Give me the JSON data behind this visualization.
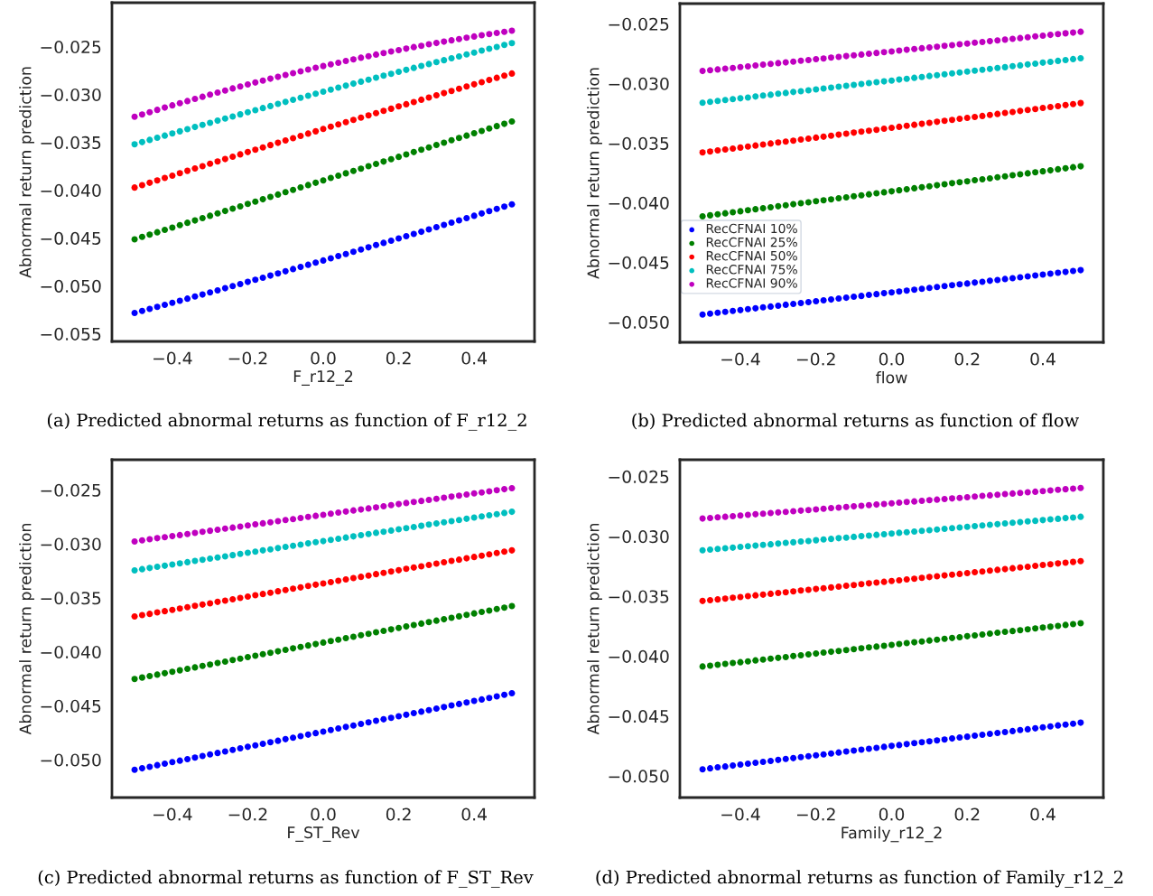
{
  "chart_data": [
    {
      "type": "scatter",
      "xlabel": "F_r12_2",
      "ylabel": "Abnormal return prediction",
      "marker": "circle",
      "xlim": [
        -0.56,
        0.56
      ],
      "ylim": [
        -0.0558,
        -0.0204
      ],
      "xticks": [
        {
          "value": -0.4,
          "label": "−0.4"
        },
        {
          "value": -0.2,
          "label": "−0.2"
        },
        {
          "value": 0.0,
          "label": "0.0"
        },
        {
          "value": 0.2,
          "label": "0.2"
        },
        {
          "value": 0.4,
          "label": "0.4"
        }
      ],
      "yticks": [
        {
          "value": -0.055,
          "label": "−0.055"
        },
        {
          "value": -0.05,
          "label": "−0.050"
        },
        {
          "value": -0.045,
          "label": "−0.045"
        },
        {
          "value": -0.04,
          "label": "−0.040"
        },
        {
          "value": -0.035,
          "label": "−0.035"
        },
        {
          "value": -0.03,
          "label": "−0.030"
        },
        {
          "value": -0.025,
          "label": "−0.025"
        }
      ],
      "annotations": [
        "(a) Predicted abnormal returns as function of F_r12_2"
      ],
      "x": [
        -0.5,
        -0.48,
        -0.46,
        -0.44,
        -0.42,
        -0.4,
        -0.38,
        -0.36,
        -0.34,
        -0.32,
        -0.3,
        -0.28,
        -0.26,
        -0.24,
        -0.22,
        -0.2,
        -0.18,
        -0.16,
        -0.14,
        -0.12,
        -0.1,
        -0.08,
        -0.06,
        -0.04,
        -0.02,
        0.0,
        0.02,
        0.04,
        0.06,
        0.08,
        0.1,
        0.12,
        0.14,
        0.16,
        0.18,
        0.2,
        0.22,
        0.24,
        0.26,
        0.28,
        0.3,
        0.32,
        0.34,
        0.36,
        0.38,
        0.4,
        0.42,
        0.44,
        0.46,
        0.48,
        0.5
      ],
      "series": [
        {
          "color": "#0000ff",
          "values": [
            -0.05283,
            -0.05262,
            -0.0524,
            -0.05219,
            -0.05198,
            -0.05176,
            -0.05155,
            -0.05133,
            -0.05111,
            -0.0509,
            -0.05068,
            -0.05046,
            -0.05024,
            -0.05002,
            -0.0498,
            -0.04958,
            -0.04936,
            -0.04914,
            -0.04892,
            -0.04869,
            -0.04847,
            -0.04824,
            -0.04802,
            -0.04779,
            -0.04757,
            -0.04734,
            -0.04711,
            -0.04688,
            -0.04666,
            -0.04643,
            -0.0462,
            -0.04597,
            -0.04573,
            -0.0455,
            -0.04527,
            -0.04504,
            -0.0448,
            -0.04457,
            -0.04434,
            -0.0441,
            -0.04386,
            -0.04363,
            -0.04339,
            -0.04315,
            -0.04291,
            -0.04267,
            -0.04243,
            -0.04219,
            -0.04195,
            -0.04171,
            -0.04147
          ]
        },
        {
          "color": "#008000",
          "values": [
            -0.04513,
            -0.04488,
            -0.04464,
            -0.04439,
            -0.04414,
            -0.0439,
            -0.04365,
            -0.0434,
            -0.04316,
            -0.04291,
            -0.04267,
            -0.04242,
            -0.04217,
            -0.04193,
            -0.04168,
            -0.04143,
            -0.04119,
            -0.04094,
            -0.0407,
            -0.04045,
            -0.0402,
            -0.03996,
            -0.03971,
            -0.03946,
            -0.03922,
            -0.03897,
            -0.03872,
            -0.03848,
            -0.03823,
            -0.03798,
            -0.03774,
            -0.03749,
            -0.03725,
            -0.037,
            -0.03675,
            -0.03651,
            -0.03626,
            -0.03601,
            -0.03577,
            -0.03552,
            -0.03527,
            -0.03503,
            -0.03478,
            -0.03453,
            -0.03429,
            -0.03404,
            -0.0338,
            -0.03355,
            -0.0333,
            -0.03306,
            -0.03281
          ]
        },
        {
          "color": "#ff0000",
          "values": [
            -0.03972,
            -0.03947,
            -0.03922,
            -0.03897,
            -0.03872,
            -0.03847,
            -0.03822,
            -0.03797,
            -0.03773,
            -0.03748,
            -0.03723,
            -0.03699,
            -0.03674,
            -0.0365,
            -0.03625,
            -0.03601,
            -0.03577,
            -0.03552,
            -0.03528,
            -0.03504,
            -0.0348,
            -0.03456,
            -0.03432,
            -0.03408,
            -0.03384,
            -0.0336,
            -0.03336,
            -0.03312,
            -0.03289,
            -0.03265,
            -0.03241,
            -0.03218,
            -0.03194,
            -0.03171,
            -0.03148,
            -0.03124,
            -0.03101,
            -0.03078,
            -0.03054,
            -0.03031,
            -0.03008,
            -0.02985,
            -0.02962,
            -0.02939,
            -0.02916,
            -0.02893,
            -0.02871,
            -0.02848,
            -0.02825,
            -0.02803,
            -0.0278
          ]
        },
        {
          "color": "#00bfbf",
          "values": [
            -0.0352,
            -0.03497,
            -0.03474,
            -0.03452,
            -0.03429,
            -0.03407,
            -0.03384,
            -0.03362,
            -0.03339,
            -0.03317,
            -0.03295,
            -0.03273,
            -0.03251,
            -0.03229,
            -0.03207,
            -0.03185,
            -0.03163,
            -0.03141,
            -0.0312,
            -0.03098,
            -0.03077,
            -0.03055,
            -0.03034,
            -0.03012,
            -0.02991,
            -0.0297,
            -0.02949,
            -0.02928,
            -0.02907,
            -0.02886,
            -0.02865,
            -0.02844,
            -0.02824,
            -0.02803,
            -0.02783,
            -0.02762,
            -0.02742,
            -0.02721,
            -0.02701,
            -0.02681,
            -0.02661,
            -0.02641,
            -0.02621,
            -0.02601,
            -0.02581,
            -0.02561,
            -0.02541,
            -0.02522,
            -0.02502,
            -0.02482,
            -0.02463
          ]
        },
        {
          "color": "#bf00bf",
          "values": [
            -0.03232,
            -0.03208,
            -0.03184,
            -0.0316,
            -0.03136,
            -0.03113,
            -0.0309,
            -0.03068,
            -0.03045,
            -0.03023,
            -0.03001,
            -0.02979,
            -0.02958,
            -0.02936,
            -0.02916,
            -0.02895,
            -0.02874,
            -0.02854,
            -0.02834,
            -0.02815,
            -0.02795,
            -0.02776,
            -0.02757,
            -0.02739,
            -0.0272,
            -0.02702,
            -0.02684,
            -0.02667,
            -0.02649,
            -0.02632,
            -0.02615,
            -0.02599,
            -0.02582,
            -0.02566,
            -0.0255,
            -0.02535,
            -0.0252,
            -0.02504,
            -0.0249,
            -0.02475,
            -0.02461,
            -0.02447,
            -0.02433,
            -0.0242,
            -0.02406,
            -0.02393,
            -0.0238,
            -0.02368,
            -0.02356,
            -0.02344,
            -0.02332
          ]
        }
      ]
    },
    {
      "type": "scatter",
      "xlabel": "flow",
      "ylabel": "Abnormal return prediction",
      "marker": "circle",
      "legend": "bottom left",
      "xlim": [
        -0.56,
        0.56
      ],
      "ylim": [
        -0.0517,
        -0.0233
      ],
      "xticks": [
        {
          "value": -0.4,
          "label": "−0.4"
        },
        {
          "value": -0.2,
          "label": "−0.2"
        },
        {
          "value": 0.0,
          "label": "0.0"
        },
        {
          "value": 0.2,
          "label": "0.2"
        },
        {
          "value": 0.4,
          "label": "0.4"
        }
      ],
      "yticks": [
        {
          "value": -0.05,
          "label": "−0.050"
        },
        {
          "value": -0.045,
          "label": "−0.045"
        },
        {
          "value": -0.04,
          "label": "−0.040"
        },
        {
          "value": -0.035,
          "label": "−0.035"
        },
        {
          "value": -0.03,
          "label": "−0.030"
        },
        {
          "value": -0.025,
          "label": "−0.025"
        }
      ],
      "annotations": [
        "(b) Predicted abnormal returns as function of flow"
      ],
      "x": [
        -0.5,
        -0.48,
        -0.46,
        -0.44,
        -0.42,
        -0.4,
        -0.38,
        -0.36,
        -0.34,
        -0.32,
        -0.3,
        -0.28,
        -0.26,
        -0.24,
        -0.22,
        -0.2,
        -0.18,
        -0.16,
        -0.14,
        -0.12,
        -0.1,
        -0.08,
        -0.06,
        -0.04,
        -0.02,
        0.0,
        0.02,
        0.04,
        0.06,
        0.08,
        0.1,
        0.12,
        0.14,
        0.16,
        0.18,
        0.2,
        0.22,
        0.24,
        0.26,
        0.28,
        0.3,
        0.32,
        0.34,
        0.36,
        0.38,
        0.4,
        0.42,
        0.44,
        0.46,
        0.48,
        0.5
      ],
      "series": [
        {
          "name": "RecCFNAI 10%",
          "color": "#0000ff",
          "values": [
            -0.04937,
            -0.0493,
            -0.04922,
            -0.04915,
            -0.04907,
            -0.049,
            -0.04892,
            -0.04885,
            -0.04877,
            -0.0487,
            -0.04863,
            -0.04855,
            -0.04848,
            -0.0484,
            -0.04833,
            -0.04825,
            -0.04818,
            -0.04811,
            -0.04803,
            -0.04796,
            -0.04788,
            -0.04781,
            -0.04773,
            -0.04766,
            -0.04758,
            -0.04751,
            -0.04744,
            -0.04736,
            -0.04729,
            -0.04721,
            -0.04714,
            -0.04706,
            -0.04699,
            -0.04691,
            -0.04684,
            -0.04677,
            -0.04669,
            -0.04662,
            -0.04654,
            -0.04647,
            -0.04639,
            -0.04632,
            -0.04625,
            -0.04617,
            -0.0461,
            -0.04602,
            -0.04595,
            -0.04587,
            -0.0458,
            -0.04572,
            -0.04565
          ]
        },
        {
          "name": "RecCFNAI 25%",
          "color": "#008000",
          "values": [
            -0.04113,
            -0.04105,
            -0.04096,
            -0.04088,
            -0.04079,
            -0.04071,
            -0.04063,
            -0.04054,
            -0.04046,
            -0.04038,
            -0.04029,
            -0.04021,
            -0.04012,
            -0.04004,
            -0.03996,
            -0.03987,
            -0.03979,
            -0.03971,
            -0.03962,
            -0.03954,
            -0.03945,
            -0.03937,
            -0.03929,
            -0.0392,
            -0.03912,
            -0.03904,
            -0.03895,
            -0.03887,
            -0.03878,
            -0.0387,
            -0.03862,
            -0.03853,
            -0.03845,
            -0.03836,
            -0.03828,
            -0.0382,
            -0.03811,
            -0.03803,
            -0.03795,
            -0.03786,
            -0.03778,
            -0.03769,
            -0.03761,
            -0.03753,
            -0.03744,
            -0.03736,
            -0.03728,
            -0.03719,
            -0.03711,
            -0.03702,
            -0.03694
          ]
        },
        {
          "name": "RecCFNAI 50%",
          "color": "#ff0000",
          "values": [
            -0.03578,
            -0.0357,
            -0.03561,
            -0.03553,
            -0.03545,
            -0.03537,
            -0.03528,
            -0.0352,
            -0.03512,
            -0.03503,
            -0.03495,
            -0.03487,
            -0.03479,
            -0.0347,
            -0.03462,
            -0.03454,
            -0.03446,
            -0.03437,
            -0.03429,
            -0.03421,
            -0.03412,
            -0.03404,
            -0.03396,
            -0.03388,
            -0.03379,
            -0.03371,
            -0.03363,
            -0.03354,
            -0.03346,
            -0.03338,
            -0.0333,
            -0.03321,
            -0.03313,
            -0.03305,
            -0.03296,
            -0.03288,
            -0.0328,
            -0.03272,
            -0.03263,
            -0.03255,
            -0.03247,
            -0.03239,
            -0.0323,
            -0.03222,
            -0.03214,
            -0.03205,
            -0.03197,
            -0.03189,
            -0.03181,
            -0.03172,
            -0.03164
          ]
        },
        {
          "name": "RecCFNAI 75%",
          "color": "#00bfbf",
          "values": [
            -0.03161,
            -0.03154,
            -0.03146,
            -0.03139,
            -0.03131,
            -0.03124,
            -0.03117,
            -0.03109,
            -0.03101,
            -0.03094,
            -0.03086,
            -0.03079,
            -0.03071,
            -0.03064,
            -0.03057,
            -0.03049,
            -0.03042,
            -0.03034,
            -0.03027,
            -0.03019,
            -0.03012,
            -0.03004,
            -0.02997,
            -0.02989,
            -0.02982,
            -0.02975,
            -0.02967,
            -0.0296,
            -0.02952,
            -0.02945,
            -0.02937,
            -0.0293,
            -0.02922,
            -0.02915,
            -0.02907,
            -0.029,
            -0.02892,
            -0.02885,
            -0.02878,
            -0.0287,
            -0.02863,
            -0.02855,
            -0.02848,
            -0.0284,
            -0.02833,
            -0.02825,
            -0.02818,
            -0.0281,
            -0.02803,
            -0.02795,
            -0.02788
          ]
        },
        {
          "name": "RecCFNAI 90%",
          "color": "#bf00bf",
          "values": [
            -0.02895,
            -0.02888,
            -0.02882,
            -0.02875,
            -0.02869,
            -0.02862,
            -0.02856,
            -0.02849,
            -0.02842,
            -0.02836,
            -0.02829,
            -0.02823,
            -0.02816,
            -0.02809,
            -0.02803,
            -0.02796,
            -0.0279,
            -0.02783,
            -0.02777,
            -0.0277,
            -0.02763,
            -0.02757,
            -0.0275,
            -0.02744,
            -0.02737,
            -0.02731,
            -0.02724,
            -0.02717,
            -0.02711,
            -0.02704,
            -0.02698,
            -0.02691,
            -0.02684,
            -0.02678,
            -0.02671,
            -0.02665,
            -0.02658,
            -0.02652,
            -0.02645,
            -0.02638,
            -0.02632,
            -0.02625,
            -0.02619,
            -0.02612,
            -0.02605,
            -0.02599,
            -0.02592,
            -0.02586,
            -0.02579,
            -0.02573,
            -0.02566
          ]
        }
      ]
    },
    {
      "type": "scatter",
      "xlabel": "F_ST_Rev",
      "ylabel": "Abnormal return prediction",
      "marker": "circle",
      "xlim": [
        -0.56,
        0.56
      ],
      "ylim": [
        -0.0535,
        -0.0222
      ],
      "xticks": [
        {
          "value": -0.4,
          "label": "−0.4"
        },
        {
          "value": -0.2,
          "label": "−0.2"
        },
        {
          "value": 0.0,
          "label": "0.0"
        },
        {
          "value": 0.2,
          "label": "0.2"
        },
        {
          "value": 0.4,
          "label": "0.4"
        }
      ],
      "yticks": [
        {
          "value": -0.05,
          "label": "−0.050"
        },
        {
          "value": -0.045,
          "label": "−0.045"
        },
        {
          "value": -0.04,
          "label": "−0.040"
        },
        {
          "value": -0.035,
          "label": "−0.035"
        },
        {
          "value": -0.03,
          "label": "−0.030"
        },
        {
          "value": -0.025,
          "label": "−0.025"
        }
      ],
      "annotations": [
        "(c) Predicted abnormal returns as function of F_ST_Rev"
      ],
      "x": [
        -0.5,
        -0.48,
        -0.46,
        -0.44,
        -0.42,
        -0.4,
        -0.38,
        -0.36,
        -0.34,
        -0.32,
        -0.3,
        -0.28,
        -0.26,
        -0.24,
        -0.22,
        -0.2,
        -0.18,
        -0.16,
        -0.14,
        -0.12,
        -0.1,
        -0.08,
        -0.06,
        -0.04,
        -0.02,
        0.0,
        0.02,
        0.04,
        0.06,
        0.08,
        0.1,
        0.12,
        0.14,
        0.16,
        0.18,
        0.2,
        0.22,
        0.24,
        0.26,
        0.28,
        0.3,
        0.32,
        0.34,
        0.36,
        0.38,
        0.4,
        0.42,
        0.44,
        0.46,
        0.48,
        0.5
      ],
      "series": [
        {
          "color": "#0000ff",
          "values": [
            -0.05093,
            -0.05079,
            -0.05065,
            -0.0505,
            -0.05036,
            -0.05022,
            -0.05008,
            -0.04994,
            -0.0498,
            -0.04965,
            -0.04951,
            -0.04937,
            -0.04923,
            -0.04909,
            -0.04894,
            -0.0488,
            -0.04866,
            -0.04852,
            -0.04838,
            -0.04824,
            -0.04809,
            -0.04795,
            -0.04781,
            -0.04767,
            -0.04753,
            -0.04739,
            -0.04724,
            -0.0471,
            -0.04696,
            -0.04682,
            -0.04668,
            -0.04653,
            -0.04639,
            -0.04625,
            -0.04611,
            -0.04597,
            -0.04583,
            -0.04568,
            -0.04554,
            -0.0454,
            -0.04526,
            -0.04512,
            -0.04497,
            -0.04483,
            -0.04469,
            -0.04455,
            -0.04441,
            -0.04427,
            -0.04412,
            -0.04398,
            -0.04384
          ]
        },
        {
          "color": "#008000",
          "values": [
            -0.04252,
            -0.04238,
            -0.04225,
            -0.04211,
            -0.04198,
            -0.04184,
            -0.04171,
            -0.04157,
            -0.04144,
            -0.0413,
            -0.04117,
            -0.04103,
            -0.0409,
            -0.04076,
            -0.04063,
            -0.04049,
            -0.04036,
            -0.04022,
            -0.04009,
            -0.03995,
            -0.03982,
            -0.03968,
            -0.03955,
            -0.03941,
            -0.03928,
            -0.03914,
            -0.039,
            -0.03887,
            -0.03873,
            -0.0386,
            -0.03846,
            -0.03833,
            -0.03819,
            -0.03806,
            -0.03792,
            -0.03779,
            -0.03765,
            -0.03752,
            -0.03738,
            -0.03725,
            -0.03711,
            -0.03698,
            -0.03684,
            -0.03671,
            -0.03657,
            -0.03644,
            -0.0363,
            -0.03617,
            -0.03603,
            -0.0359,
            -0.03576
          ]
        },
        {
          "color": "#ff0000",
          "values": [
            -0.03672,
            -0.0366,
            -0.03648,
            -0.03635,
            -0.03623,
            -0.03611,
            -0.03599,
            -0.03586,
            -0.03574,
            -0.03562,
            -0.0355,
            -0.03537,
            -0.03525,
            -0.03513,
            -0.03501,
            -0.03488,
            -0.03476,
            -0.03464,
            -0.03452,
            -0.03439,
            -0.03427,
            -0.03415,
            -0.03403,
            -0.0339,
            -0.03378,
            -0.03366,
            -0.03354,
            -0.03342,
            -0.03329,
            -0.03317,
            -0.03305,
            -0.03293,
            -0.0328,
            -0.03268,
            -0.03256,
            -0.03244,
            -0.03231,
            -0.03219,
            -0.03207,
            -0.03195,
            -0.03182,
            -0.0317,
            -0.03158,
            -0.03146,
            -0.03133,
            -0.03121,
            -0.03109,
            -0.03097,
            -0.03084,
            -0.03072,
            -0.0306
          ]
        },
        {
          "color": "#00bfbf",
          "values": [
            -0.03245,
            -0.03234,
            -0.03223,
            -0.03212,
            -0.03202,
            -0.03191,
            -0.0318,
            -0.03169,
            -0.03158,
            -0.03147,
            -0.03136,
            -0.03126,
            -0.03115,
            -0.03104,
            -0.03093,
            -0.03082,
            -0.03071,
            -0.0306,
            -0.0305,
            -0.03039,
            -0.03028,
            -0.03017,
            -0.03006,
            -0.02995,
            -0.02984,
            -0.02974,
            -0.02963,
            -0.02952,
            -0.02941,
            -0.0293,
            -0.02919,
            -0.02908,
            -0.02897,
            -0.02887,
            -0.02876,
            -0.02865,
            -0.02854,
            -0.02843,
            -0.02832,
            -0.02821,
            -0.02811,
            -0.028,
            -0.02789,
            -0.02778,
            -0.02767,
            -0.02756,
            -0.02745,
            -0.02735,
            -0.02724,
            -0.02713,
            -0.02702
          ]
        },
        {
          "color": "#bf00bf",
          "values": [
            -0.02977,
            -0.02967,
            -0.02957,
            -0.02947,
            -0.02937,
            -0.02928,
            -0.02918,
            -0.02908,
            -0.02898,
            -0.02888,
            -0.02878,
            -0.02868,
            -0.02858,
            -0.02849,
            -0.02839,
            -0.02829,
            -0.02819,
            -0.02809,
            -0.02799,
            -0.02789,
            -0.02779,
            -0.0277,
            -0.0276,
            -0.0275,
            -0.0274,
            -0.0273,
            -0.0272,
            -0.0271,
            -0.027,
            -0.0269,
            -0.02681,
            -0.02671,
            -0.02661,
            -0.02651,
            -0.02641,
            -0.02631,
            -0.02621,
            -0.02611,
            -0.02602,
            -0.02592,
            -0.02582,
            -0.02572,
            -0.02562,
            -0.02552,
            -0.02542,
            -0.02532,
            -0.02523,
            -0.02513,
            -0.02503,
            -0.02493,
            -0.02483
          ]
        }
      ]
    },
    {
      "type": "scatter",
      "xlabel": "Family_r12_2",
      "ylabel": "Abnormal return prediction",
      "marker": "circle",
      "xlim": [
        -0.56,
        0.56
      ],
      "ylim": [
        -0.0518,
        -0.0236
      ],
      "xticks": [
        {
          "value": -0.4,
          "label": "−0.4"
        },
        {
          "value": -0.2,
          "label": "−0.2"
        },
        {
          "value": 0.0,
          "label": "0.0"
        },
        {
          "value": 0.2,
          "label": "0.2"
        },
        {
          "value": 0.4,
          "label": "0.4"
        }
      ],
      "yticks": [
        {
          "value": -0.05,
          "label": "−0.050"
        },
        {
          "value": -0.045,
          "label": "−0.045"
        },
        {
          "value": -0.04,
          "label": "−0.040"
        },
        {
          "value": -0.035,
          "label": "−0.035"
        },
        {
          "value": -0.03,
          "label": "−0.030"
        },
        {
          "value": -0.025,
          "label": "−0.025"
        }
      ],
      "annotations": [
        "(d) Predicted abnormal returns as function of Family_r12_2"
      ],
      "x": [
        -0.5,
        -0.48,
        -0.46,
        -0.44,
        -0.42,
        -0.4,
        -0.38,
        -0.36,
        -0.34,
        -0.32,
        -0.3,
        -0.28,
        -0.26,
        -0.24,
        -0.22,
        -0.2,
        -0.18,
        -0.16,
        -0.14,
        -0.12,
        -0.1,
        -0.08,
        -0.06,
        -0.04,
        -0.02,
        0.0,
        0.02,
        0.04,
        0.06,
        0.08,
        0.1,
        0.12,
        0.14,
        0.16,
        0.18,
        0.2,
        0.22,
        0.24,
        0.26,
        0.28,
        0.3,
        0.32,
        0.34,
        0.36,
        0.38,
        0.4,
        0.42,
        0.44,
        0.46,
        0.48,
        0.5
      ],
      "series": [
        {
          "color": "#0000ff",
          "values": [
            -0.04944,
            -0.04936,
            -0.04928,
            -0.04921,
            -0.04913,
            -0.04905,
            -0.04897,
            -0.0489,
            -0.04882,
            -0.04874,
            -0.04866,
            -0.04858,
            -0.04851,
            -0.04843,
            -0.04835,
            -0.04827,
            -0.0482,
            -0.04812,
            -0.04804,
            -0.04796,
            -0.04788,
            -0.04781,
            -0.04773,
            -0.04765,
            -0.04757,
            -0.04749,
            -0.04742,
            -0.04734,
            -0.04726,
            -0.04718,
            -0.04711,
            -0.04703,
            -0.04695,
            -0.04687,
            -0.04679,
            -0.04672,
            -0.04664,
            -0.04656,
            -0.04648,
            -0.04641,
            -0.04633,
            -0.04625,
            -0.04617,
            -0.0461,
            -0.04602,
            -0.04594,
            -0.04586,
            -0.04578,
            -0.04571,
            -0.04563,
            -0.04555
          ]
        },
        {
          "color": "#008000",
          "values": [
            -0.04086,
            -0.04079,
            -0.04072,
            -0.04064,
            -0.04057,
            -0.0405,
            -0.04043,
            -0.04035,
            -0.04028,
            -0.04021,
            -0.04014,
            -0.04007,
            -0.03999,
            -0.03992,
            -0.03985,
            -0.03978,
            -0.0397,
            -0.03963,
            -0.03956,
            -0.03949,
            -0.03942,
            -0.03934,
            -0.03927,
            -0.0392,
            -0.03913,
            -0.03906,
            -0.03898,
            -0.03891,
            -0.03884,
            -0.03877,
            -0.03869,
            -0.03862,
            -0.03855,
            -0.03848,
            -0.03841,
            -0.03833,
            -0.03826,
            -0.03819,
            -0.03812,
            -0.03804,
            -0.03797,
            -0.0379,
            -0.03783,
            -0.03776,
            -0.03768,
            -0.03761,
            -0.03754,
            -0.03747,
            -0.03739,
            -0.03732,
            -0.03725
          ]
        },
        {
          "color": "#ff0000",
          "values": [
            -0.03539,
            -0.03532,
            -0.03526,
            -0.03519,
            -0.03512,
            -0.03506,
            -0.03499,
            -0.03492,
            -0.03486,
            -0.03479,
            -0.03472,
            -0.03466,
            -0.03459,
            -0.03452,
            -0.03446,
            -0.03439,
            -0.03432,
            -0.03426,
            -0.03419,
            -0.03412,
            -0.03406,
            -0.03399,
            -0.03392,
            -0.03386,
            -0.03379,
            -0.03372,
            -0.03366,
            -0.03359,
            -0.03353,
            -0.03346,
            -0.03339,
            -0.03333,
            -0.03326,
            -0.03319,
            -0.03313,
            -0.03306,
            -0.03299,
            -0.03293,
            -0.03286,
            -0.03279,
            -0.03273,
            -0.03266,
            -0.03259,
            -0.03253,
            -0.03246,
            -0.03239,
            -0.03233,
            -0.03226,
            -0.03219,
            -0.03213,
            -0.03206
          ]
        },
        {
          "color": "#00bfbf",
          "values": [
            -0.03116,
            -0.0311,
            -0.03105,
            -0.03099,
            -0.03094,
            -0.03088,
            -0.03082,
            -0.03077,
            -0.03071,
            -0.03066,
            -0.0306,
            -0.03054,
            -0.03049,
            -0.03043,
            -0.03038,
            -0.03032,
            -0.03026,
            -0.03021,
            -0.03015,
            -0.0301,
            -0.03004,
            -0.02998,
            -0.02993,
            -0.02987,
            -0.02982,
            -0.02976,
            -0.0297,
            -0.02965,
            -0.02959,
            -0.02954,
            -0.02948,
            -0.02942,
            -0.02937,
            -0.02931,
            -0.02926,
            -0.0292,
            -0.02914,
            -0.02909,
            -0.02903,
            -0.02898,
            -0.02892,
            -0.02886,
            -0.02881,
            -0.02875,
            -0.0287,
            -0.02864,
            -0.02858,
            -0.02853,
            -0.02847,
            -0.02842,
            -0.02836
          ]
        },
        {
          "color": "#bf00bf",
          "values": [
            -0.02851,
            -0.02846,
            -0.02841,
            -0.02836,
            -0.02831,
            -0.02826,
            -0.0282,
            -0.02815,
            -0.0281,
            -0.02805,
            -0.028,
            -0.02795,
            -0.0279,
            -0.02785,
            -0.0278,
            -0.02775,
            -0.02769,
            -0.02764,
            -0.02759,
            -0.02754,
            -0.02749,
            -0.02744,
            -0.02739,
            -0.02734,
            -0.02729,
            -0.02724,
            -0.02718,
            -0.02713,
            -0.02708,
            -0.02703,
            -0.02698,
            -0.02693,
            -0.02688,
            -0.02683,
            -0.02678,
            -0.02673,
            -0.02667,
            -0.02662,
            -0.02657,
            -0.02652,
            -0.02647,
            -0.02642,
            -0.02637,
            -0.02632,
            -0.02627,
            -0.02622,
            -0.02616,
            -0.02611,
            -0.02606,
            -0.02601,
            -0.02596
          ]
        }
      ]
    }
  ]
}
